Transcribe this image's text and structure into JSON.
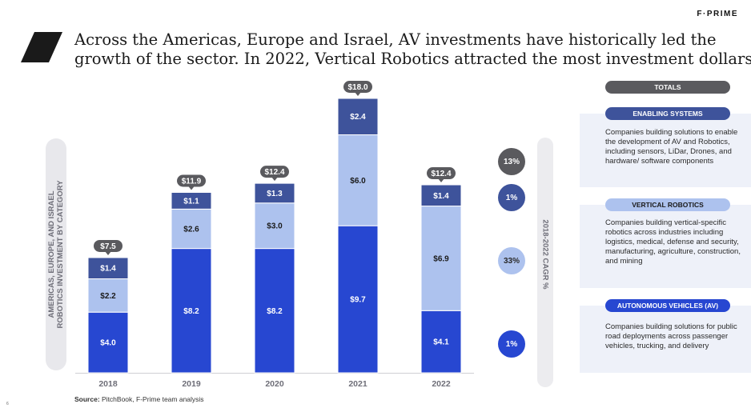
{
  "brand": "F·PRIME",
  "title_lines": [
    "Across the Americas, Europe and Israel, AV investments have historically led the",
    "growth of the sector.  In 2022, Vertical Robotics attracted the most investment dollars"
  ],
  "y_axis_label_lines": [
    "AMERICAS, EUROPE, AND ISRAEL",
    "ROBOTICS INVESTMENT BY CATEGORY"
  ],
  "chart_data": {
    "type": "bar",
    "stacked": true,
    "categories": [
      "2018",
      "2019",
      "2020",
      "2021",
      "2022"
    ],
    "series": [
      {
        "name": "AUTONOMOUS VEHICLES (AV)",
        "values": [
          4.0,
          8.2,
          8.2,
          9.7,
          4.1
        ],
        "labels": [
          "$4.0",
          "$8.2",
          "$8.2",
          "$9.7",
          "$4.1"
        ],
        "color": "#2747d1"
      },
      {
        "name": "VERTICAL ROBOTICS",
        "values": [
          2.2,
          2.6,
          3.0,
          6.0,
          6.9
        ],
        "labels": [
          "$2.2",
          "$2.6",
          "$3.0",
          "$6.0",
          "$6.9"
        ],
        "color": "#adc2ee"
      },
      {
        "name": "ENABLING SYSTEMS",
        "values": [
          1.4,
          1.1,
          1.3,
          2.4,
          1.4
        ],
        "labels": [
          "$1.4",
          "$1.1",
          "$1.3",
          "$2.4",
          "$1.4"
        ],
        "color": "#3e539b"
      }
    ],
    "totals": [
      7.5,
      11.9,
      12.4,
      18.0,
      12.4
    ],
    "total_labels": [
      "$7.5",
      "$11.9",
      "$12.4",
      "$18.0",
      "$12.4"
    ],
    "ylim": [
      0,
      18.5
    ],
    "grid": false,
    "legend": "right"
  },
  "cagr": {
    "label": "2018-2022 CAGR %",
    "values": [
      "13%",
      "1%",
      "33%",
      "1%"
    ]
  },
  "panel": {
    "header": "TOTALS",
    "categories": [
      {
        "name": "ENABLING SYSTEMS",
        "description": "Companies building solutions to enable the development of AV and Robotics, including sensors, LiDar, Drones, and hardware/ software components"
      },
      {
        "name": "VERTICAL ROBOTICS",
        "description": "Companies building vertical-specific robotics across industries including logistics, medical, defense and security, manufacturing, agriculture, construction, and mining"
      },
      {
        "name": "AUTONOMOUS VEHICLES (AV)",
        "description": "Companies building solutions for public road deployments across passenger vehicles, trucking, and delivery"
      }
    ]
  },
  "source": {
    "label": "Source:",
    "text": " PitchBook, F-Prime team analysis"
  },
  "page_number": "6"
}
